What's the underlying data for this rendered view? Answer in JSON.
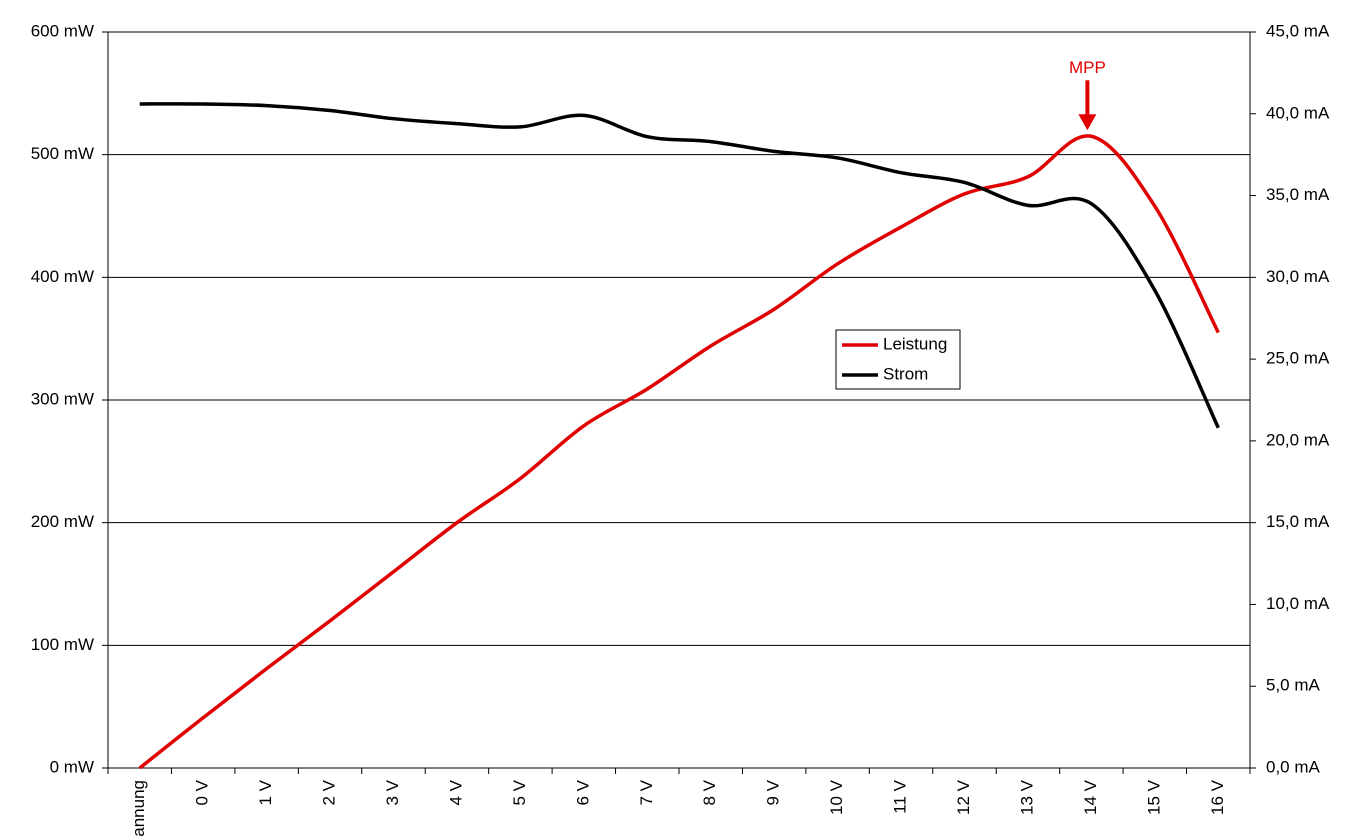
{
  "chart_data": {
    "type": "line",
    "categories": [
      "annung",
      "0 V",
      "1 V",
      "2 V",
      "3 V",
      "4 V",
      "5 V",
      "6 V",
      "7 V",
      "8 V",
      "9 V",
      "10 V",
      "11 V",
      "12 V",
      "13 V",
      "14 V",
      "15 V",
      "16 V"
    ],
    "series": [
      {
        "name": "Leistung",
        "color": "#e00000",
        "values": [
          0,
          41,
          81,
          120,
          160,
          200,
          236,
          279,
          309,
          344,
          374,
          411,
          441,
          468,
          482,
          515,
          458,
          355
        ]
      },
      {
        "name": "Strom",
        "color": "#000000",
        "axis": "y2",
        "values": [
          40.6,
          40.6,
          40.5,
          40.2,
          39.7,
          39.4,
          39.2,
          39.9,
          38.6,
          38.3,
          37.7,
          37.3,
          36.4,
          35.8,
          34.4,
          34.5,
          29.2,
          20.8
        ]
      }
    ],
    "ylim": [
      0,
      600
    ],
    "yticks": [
      {
        "value": 0,
        "label": "0 mW"
      },
      {
        "value": 100,
        "label": "100 mW"
      },
      {
        "value": 200,
        "label": "200 mW"
      },
      {
        "value": 300,
        "label": "300 mW"
      },
      {
        "value": 400,
        "label": "400 mW"
      },
      {
        "value": 500,
        "label": "500 mW"
      },
      {
        "value": 600,
        "label": "600 mW"
      }
    ],
    "y2lim": [
      0,
      45
    ],
    "y2ticks": [
      {
        "value": 0,
        "label": "0,0 mA"
      },
      {
        "value": 5,
        "label": "5,0 mA"
      },
      {
        "value": 10,
        "label": "10,0 mA"
      },
      {
        "value": 15,
        "label": "15,0 mA"
      },
      {
        "value": 20,
        "label": "20,0 mA"
      },
      {
        "value": 25,
        "label": "25,0 mA"
      },
      {
        "value": 30,
        "label": "30,0 mA"
      },
      {
        "value": 35,
        "label": "35,0 mA"
      },
      {
        "value": 40,
        "label": "40,0 mA"
      },
      {
        "value": 45,
        "label": "45,0 mA"
      }
    ],
    "grid": true,
    "legend": "center",
    "annotations": [
      {
        "text": "MPP",
        "series": 0,
        "index": 15,
        "color": "#e00000"
      }
    ]
  }
}
